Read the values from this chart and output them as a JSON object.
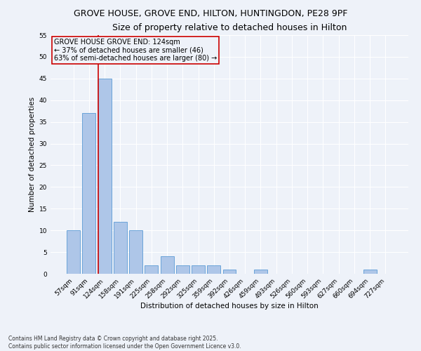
{
  "title1": "GROVE HOUSE, GROVE END, HILTON, HUNTINGDON, PE28 9PF",
  "title2": "Size of property relative to detached houses in Hilton",
  "xlabel": "Distribution of detached houses by size in Hilton",
  "ylabel": "Number of detached properties",
  "categories": [
    "57sqm",
    "91sqm",
    "124sqm",
    "158sqm",
    "191sqm",
    "225sqm",
    "258sqm",
    "292sqm",
    "325sqm",
    "359sqm",
    "392sqm",
    "426sqm",
    "459sqm",
    "493sqm",
    "526sqm",
    "560sqm",
    "593sqm",
    "627sqm",
    "660sqm",
    "694sqm",
    "727sqm"
  ],
  "values": [
    10,
    37,
    45,
    12,
    10,
    2,
    4,
    2,
    2,
    2,
    1,
    0,
    1,
    0,
    0,
    0,
    0,
    0,
    0,
    1,
    0
  ],
  "bar_color": "#aec6e8",
  "bar_edge_color": "#5b9bd5",
  "vline_index": 2,
  "vline_color": "#cc0000",
  "annotation_title": "GROVE HOUSE GROVE END: 124sqm",
  "annotation_line1": "← 37% of detached houses are smaller (46)",
  "annotation_line2": "63% of semi-detached houses are larger (80) →",
  "annotation_box_edgecolor": "#cc0000",
  "ylim": [
    0,
    55
  ],
  "yticks": [
    0,
    5,
    10,
    15,
    20,
    25,
    30,
    35,
    40,
    45,
    50,
    55
  ],
  "background_color": "#eef2f9",
  "grid_color": "#ffffff",
  "footer1": "Contains HM Land Registry data © Crown copyright and database right 2025.",
  "footer2": "Contains public sector information licensed under the Open Government Licence v3.0.",
  "title1_fontsize": 9,
  "title2_fontsize": 9,
  "axis_label_fontsize": 7.5,
  "tick_fontsize": 6.5,
  "annotation_fontsize": 7,
  "footer_fontsize": 5.5
}
